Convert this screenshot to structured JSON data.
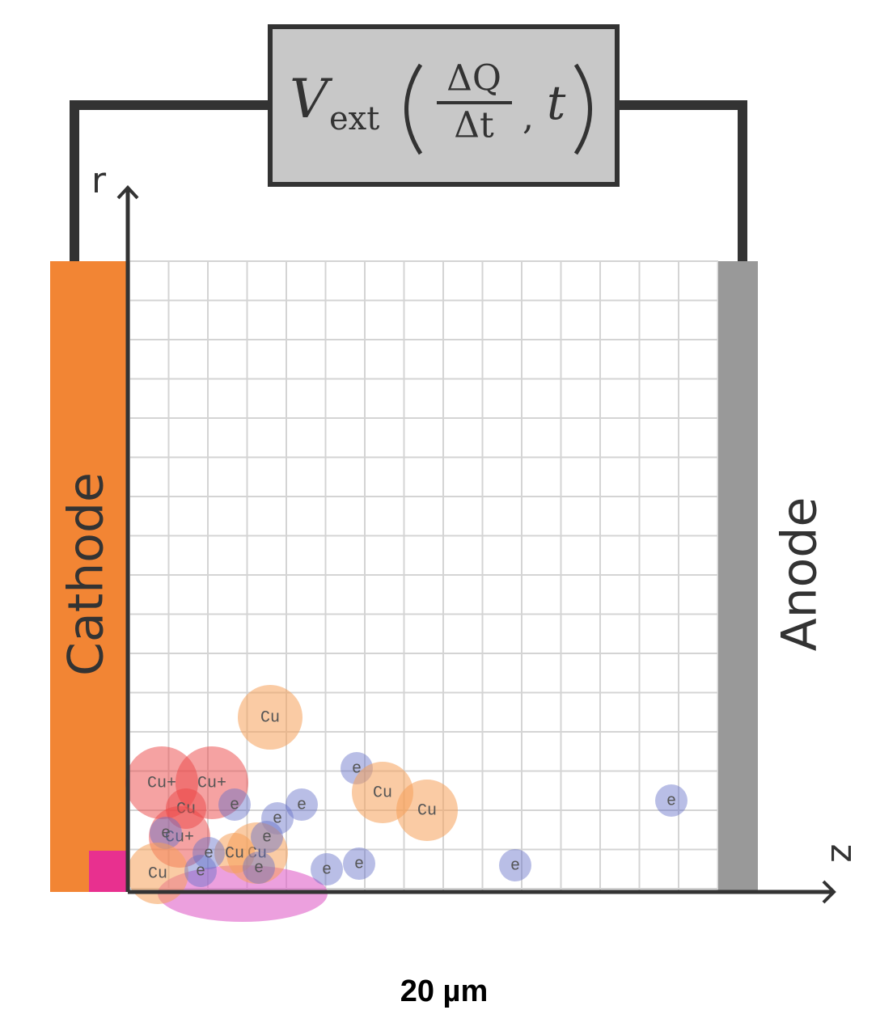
{
  "formula": {
    "symbol": "V",
    "subscript": "ext",
    "numerator": "ΔQ",
    "denominator": "Δt",
    "separator": ",",
    "argument": "t"
  },
  "axes": {
    "r": "r",
    "z": "z"
  },
  "electrodes": {
    "cathode": "Cathode",
    "anode": "Anode"
  },
  "scale_label": "20 µm",
  "particles": [
    "Cu",
    "Cu+",
    "Cu+",
    "e",
    "Cu",
    "Cu",
    "e",
    "e",
    "e",
    "Cu",
    "e",
    "e",
    "e",
    "e",
    "Cu+",
    "e",
    "Cu",
    "e",
    "Cu",
    "e",
    "Cu",
    "e",
    "e"
  ]
}
